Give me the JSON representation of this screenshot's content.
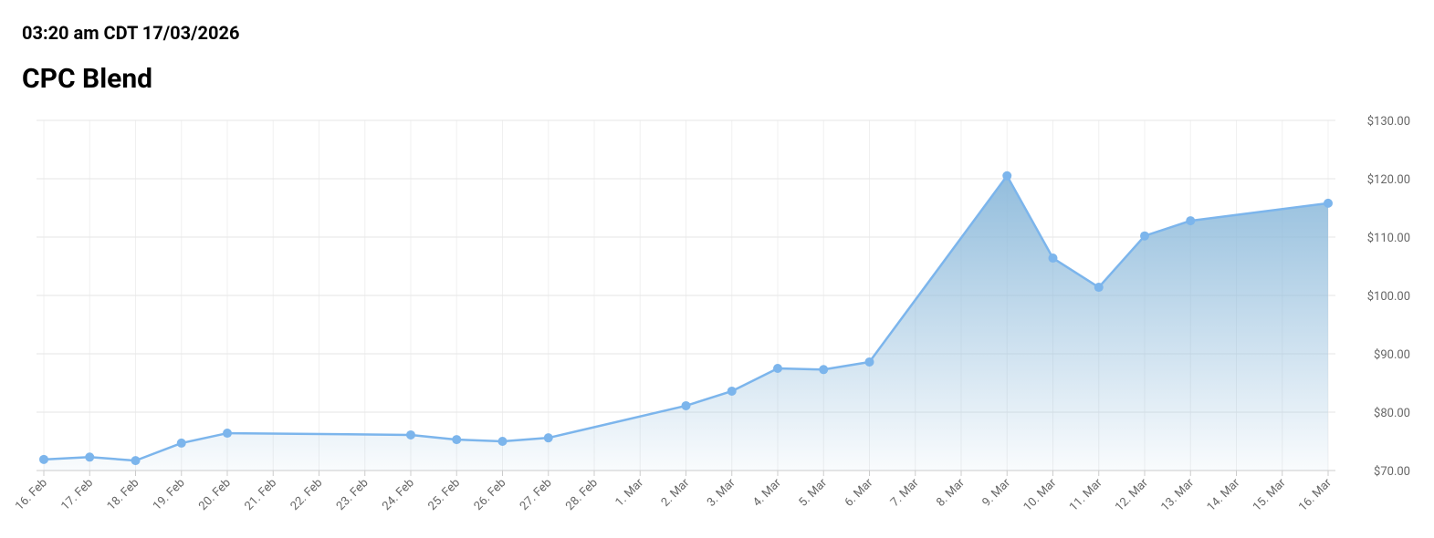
{
  "chart_data": {
    "type": "line",
    "timestamp": "03:20 am CDT 17/03/2026",
    "title": "CPC Blend",
    "categories": [
      "16. Feb",
      "17. Feb",
      "18. Feb",
      "19. Feb",
      "20. Feb",
      "21. Feb",
      "22. Feb",
      "23. Feb",
      "24. Feb",
      "25. Feb",
      "26. Feb",
      "27. Feb",
      "28. Feb",
      "1. Mar",
      "2. Mar",
      "3. Mar",
      "4. Mar",
      "5. Mar",
      "6. Mar",
      "7. Mar",
      "8. Mar",
      "9. Mar",
      "10. Mar",
      "11. Mar",
      "12. Mar",
      "13. Mar",
      "14. Mar",
      "15. Mar",
      "16. Mar"
    ],
    "series": [
      {
        "name": "CPC Blend",
        "color": "#7cb5ec",
        "x": [
          "16. Feb",
          "17. Feb",
          "18. Feb",
          "19. Feb",
          "20. Feb",
          "24. Feb",
          "25. Feb",
          "26. Feb",
          "27. Feb",
          "2. Mar",
          "3. Mar",
          "4. Mar",
          "5. Mar",
          "6. Mar",
          "9. Mar",
          "10. Mar",
          "11. Mar",
          "12. Mar",
          "13. Mar",
          "16. Mar"
        ],
        "values": [
          71.9,
          72.3,
          71.7,
          74.7,
          76.4,
          76.1,
          75.3,
          75.0,
          75.6,
          81.1,
          83.6,
          87.5,
          87.3,
          88.6,
          120.5,
          106.4,
          101.4,
          110.2,
          112.8,
          115.8
        ]
      }
    ],
    "ylim": [
      70,
      130
    ],
    "yticks": [
      {
        "value": 70,
        "label": "$70.00"
      },
      {
        "value": 80,
        "label": "$80.00"
      },
      {
        "value": 90,
        "label": "$90.00"
      },
      {
        "value": 100,
        "label": "$100.00"
      },
      {
        "value": 110,
        "label": "$110.00"
      },
      {
        "value": 120,
        "label": "$120.00"
      },
      {
        "value": 130,
        "label": "$130.00"
      }
    ],
    "grid": true
  }
}
